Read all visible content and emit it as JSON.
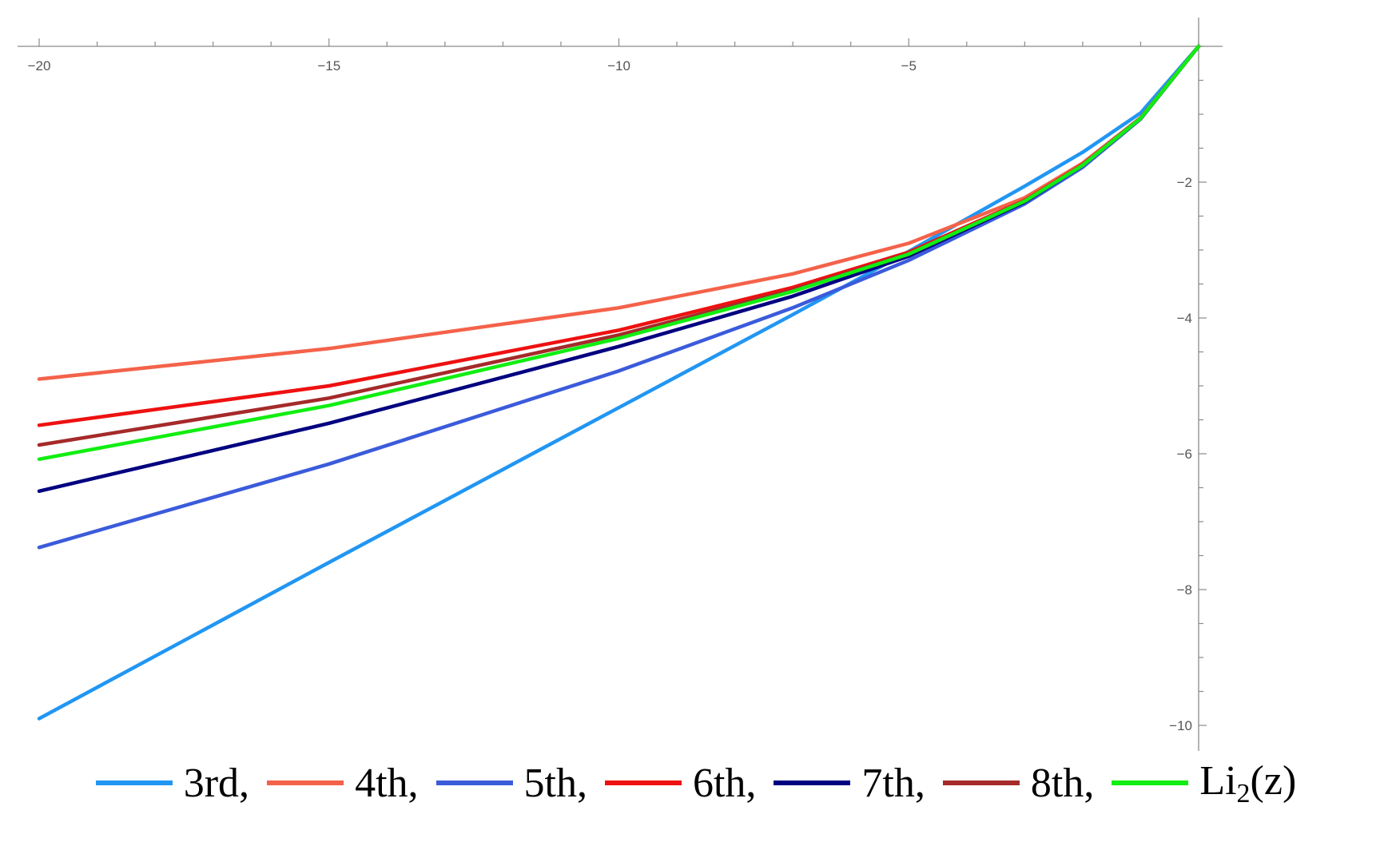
{
  "chart_data": {
    "type": "line",
    "title": "",
    "xlabel": "",
    "ylabel": "",
    "xlim": [
      -20,
      0
    ],
    "ylim": [
      -10.4,
      0
    ],
    "x_ticks": [
      -20,
      -15,
      -10,
      -5
    ],
    "x_tick_labels": [
      "−20",
      "−15",
      "−10",
      "−5"
    ],
    "y_ticks": [
      -2,
      -4,
      -6,
      -8,
      -10
    ],
    "y_tick_labels": [
      "−2",
      "−4",
      "−6",
      "−8",
      "−10"
    ],
    "grid": false,
    "legend_position": "bottom",
    "series": [
      {
        "name": "3rd",
        "legend_label": "3rd,",
        "color": "#2196F3",
        "x": [
          -20,
          -15,
          -10,
          -7,
          -5,
          -3,
          -2,
          -1,
          0
        ],
        "y": [
          -9.9,
          -7.6,
          -5.32,
          -3.95,
          -3.02,
          -2.06,
          -1.56,
          -0.98,
          0
        ]
      },
      {
        "name": "4th",
        "legend_label": "4th,",
        "color": "#F4624A",
        "x": [
          -20,
          -15,
          -10,
          -7,
          -5,
          -3,
          -2,
          -1,
          0
        ],
        "y": [
          -4.9,
          -4.45,
          -3.85,
          -3.35,
          -2.9,
          -2.23,
          -1.72,
          -1.05,
          0
        ]
      },
      {
        "name": "5th",
        "legend_label": "5th,",
        "color": "#3B5BDB",
        "x": [
          -20,
          -15,
          -10,
          -7,
          -5,
          -3,
          -2,
          -1,
          0
        ],
        "y": [
          -7.38,
          -6.15,
          -4.78,
          -3.85,
          -3.15,
          -2.32,
          -1.78,
          -1.07,
          0
        ]
      },
      {
        "name": "6th",
        "legend_label": "6th,",
        "color": "#EE1111",
        "x": [
          -20,
          -15,
          -10,
          -7,
          -5,
          -3,
          -2,
          -1,
          0
        ],
        "y": [
          -5.58,
          -5.0,
          -4.18,
          -3.55,
          -3.03,
          -2.27,
          -1.74,
          -1.06,
          0
        ]
      },
      {
        "name": "7th",
        "legend_label": "7th,",
        "color": "#000080",
        "x": [
          -20,
          -15,
          -10,
          -7,
          -5,
          -3,
          -2,
          -1,
          0
        ],
        "y": [
          -6.55,
          -5.55,
          -4.42,
          -3.68,
          -3.09,
          -2.29,
          -1.75,
          -1.06,
          0
        ]
      },
      {
        "name": "8th",
        "legend_label": "8th,",
        "color": "#A52A2A",
        "x": [
          -20,
          -15,
          -10,
          -7,
          -5,
          -3,
          -2,
          -1,
          0
        ],
        "y": [
          -5.87,
          -5.18,
          -4.25,
          -3.59,
          -3.05,
          -2.28,
          -1.75,
          -1.06,
          0
        ]
      },
      {
        "name": "Li2(z)",
        "legend_label": "Li",
        "legend_sub": "2",
        "legend_suffix": "(z)",
        "color": "#11EE11",
        "x": [
          -20,
          -15,
          -10,
          -7,
          -5,
          -3,
          -2,
          -1,
          0
        ],
        "y": [
          -6.08,
          -5.29,
          -4.3,
          -3.61,
          -3.06,
          -2.28,
          -1.75,
          -1.06,
          0
        ]
      }
    ]
  }
}
